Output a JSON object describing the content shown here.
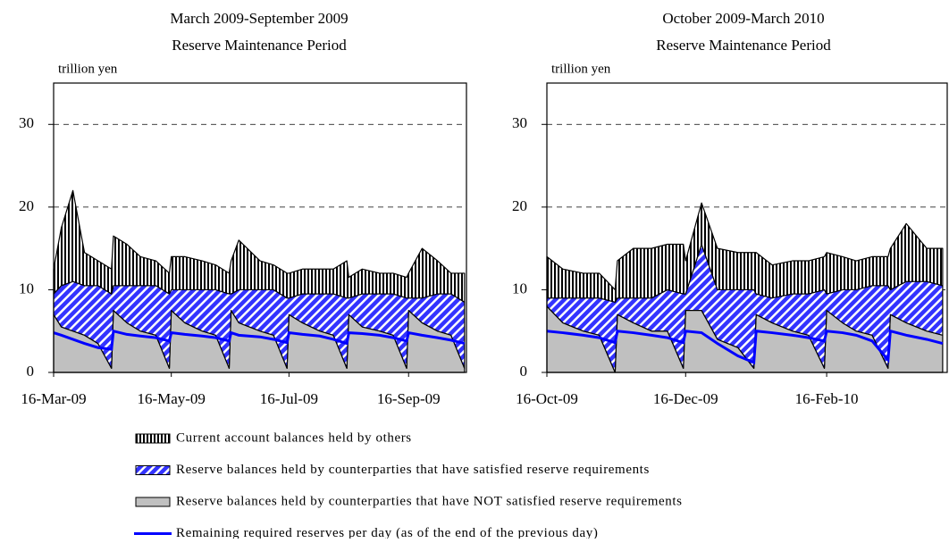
{
  "chart_data": [
    {
      "type": "area",
      "title": "March 2009-September 2009",
      "subtitle": "Reserve Maintenance Period",
      "ylabel": "trillion yen",
      "x": [
        "16-Mar-09",
        "20-Mar-09",
        "26-Mar-09",
        "01-Apr-09",
        "08-Apr-09",
        "15-Apr-09",
        "16-Apr-09",
        "23-Apr-09",
        "30-Apr-09",
        "08-May-09",
        "15-May-09",
        "16-May-09",
        "23-May-09",
        "01-Jun-09",
        "08-Jun-09",
        "15-Jun-09",
        "16-Jun-09",
        "20-Jun-09",
        "01-Jul-09",
        "08-Jul-09",
        "15-Jul-09",
        "16-Jul-09",
        "23-Jul-09",
        "01-Aug-09",
        "08-Aug-09",
        "15-Aug-09",
        "16-Aug-09",
        "23-Aug-09",
        "01-Sep-09",
        "08-Sep-09",
        "15-Sep-09",
        "16-Sep-09",
        "23-Sep-09",
        "01-Oct-09",
        "08-Oct-09",
        "15-Oct-09"
      ],
      "xlim": [
        "16-Mar-09",
        "16-Oct-09"
      ],
      "xticks": [
        "16-Mar-09",
        "16-May-09",
        "16-Jul-09",
        "16-Sep-09"
      ],
      "ylim": [
        0,
        35
      ],
      "yticks": [
        0,
        10,
        20,
        30
      ],
      "grid": true,
      "series": [
        {
          "name": "Reserve balances held by counterparties that have NOT satisfied reserve requirements",
          "kind": "area",
          "hatch": "solid",
          "color": "#c0c0c0",
          "values": [
            7,
            5.5,
            5,
            4.5,
            3.5,
            0.5,
            7.5,
            6,
            5,
            4.5,
            0.5,
            7.5,
            6,
            5,
            4.5,
            0.5,
            7.5,
            6,
            5,
            4.5,
            0.5,
            7,
            6,
            5,
            4.5,
            0.5,
            7,
            5.5,
            5,
            4.5,
            0.5,
            7.5,
            6,
            5,
            4.5,
            0.5
          ]
        },
        {
          "name": "Reserve balances held by counterparties that have satisfied reserve requirements",
          "kind": "area",
          "hatch": "diagonal",
          "color": "#3333ff",
          "values": [
            2.5,
            5,
            6,
            6,
            7,
            9,
            3,
            4.5,
            5.5,
            6,
            9,
            2.5,
            4,
            5,
            5.5,
            9,
            2,
            4,
            5,
            5.5,
            8.5,
            2,
            3.5,
            4.5,
            5,
            8.5,
            2,
            4,
            4.5,
            5,
            8.5,
            1.5,
            3,
            4.5,
            5,
            8
          ]
        },
        {
          "name": "Current account balances held by others",
          "kind": "area",
          "hatch": "vertical",
          "color": "#000000",
          "values": [
            3,
            7,
            11,
            4,
            3,
            3,
            6,
            5,
            3.5,
            3,
            2.5,
            4,
            4,
            3.5,
            3,
            2.5,
            4,
            6,
            3.5,
            3,
            3,
            3,
            3,
            3,
            3,
            4.5,
            2.5,
            3,
            2.5,
            2.5,
            2.5,
            3,
            6,
            4,
            2.5,
            3.5
          ]
        },
        {
          "name": "Remaining required reserves per day (as of the end of the previous day)",
          "kind": "line",
          "color": "#0000ff",
          "values": [
            4.8,
            4.5,
            4,
            3.5,
            3,
            2.8,
            5,
            4.6,
            4.4,
            4.2,
            3.8,
            4.8,
            4.6,
            4.4,
            4.2,
            3.8,
            4.8,
            4.5,
            4.3,
            4,
            3.6,
            4.8,
            4.6,
            4.4,
            4,
            3.5,
            4.8,
            4.7,
            4.5,
            4.2,
            3.8,
            4.8,
            4.5,
            4.2,
            3.9,
            3.5
          ]
        }
      ]
    },
    {
      "type": "area",
      "title": "October 2009-March 2010",
      "subtitle": "Reserve Maintenance Period",
      "ylabel": "trillion yen",
      "x": [
        "16-Oct-09",
        "23-Oct-09",
        "01-Nov-09",
        "08-Nov-09",
        "15-Nov-09",
        "16-Nov-09",
        "23-Nov-09",
        "01-Dec-09",
        "08-Dec-09",
        "15-Dec-09",
        "16-Dec-09",
        "23-Dec-09",
        "30-Dec-09",
        "08-Jan-10",
        "15-Jan-10",
        "16-Jan-10",
        "23-Jan-10",
        "01-Feb-10",
        "08-Feb-10",
        "15-Feb-10",
        "16-Feb-10",
        "23-Feb-10",
        "01-Mar-10",
        "08-Mar-10",
        "15-Mar-10",
        "16-Mar-10",
        "23-Mar-10",
        "01-Apr-10",
        "08-Apr-10"
      ],
      "xlim": [
        "16-Oct-09",
        "10-Apr-10"
      ],
      "xticks": [
        "16-Oct-09",
        "16-Dec-09",
        "16-Feb-10"
      ],
      "ylim": [
        0,
        35
      ],
      "yticks": [
        0,
        10,
        20,
        30
      ],
      "grid": true,
      "series": [
        {
          "name": "Reserve balances held by counterparties that have NOT satisfied reserve requirements",
          "kind": "area",
          "hatch": "solid",
          "color": "#c0c0c0",
          "values": [
            8,
            6,
            5,
            4.5,
            0,
            7,
            6,
            5,
            5,
            0.5,
            7.5,
            7.5,
            4,
            3,
            0.5,
            7,
            6,
            5,
            4.5,
            0.5,
            7.5,
            6,
            5,
            4.5,
            0.5,
            7,
            6,
            5,
            4.5
          ]
        },
        {
          "name": "Reserve balances held by counterparties that have satisfied reserve requirements",
          "kind": "area",
          "hatch": "diagonal",
          "color": "#3333ff",
          "values": [
            1,
            3,
            4,
            4.5,
            8.5,
            2,
            3,
            4,
            5,
            9,
            2,
            8,
            6,
            7,
            9.5,
            2.5,
            3,
            4.5,
            5,
            9.5,
            2,
            4,
            5,
            6,
            10,
            3,
            5,
            6,
            6
          ]
        },
        {
          "name": "Current account balances held by others",
          "kind": "area",
          "hatch": "vertical",
          "color": "#000000",
          "values": [
            5,
            3.5,
            3,
            3,
            1.5,
            4.5,
            6,
            6,
            5.5,
            6,
            4,
            5,
            5,
            4.5,
            4.5,
            5,
            4,
            4,
            4,
            4,
            5,
            4,
            3.5,
            3.5,
            3.5,
            5,
            7,
            4,
            4.5
          ]
        },
        {
          "name": "Remaining required reserves per day (as of the end of the previous day)",
          "kind": "line",
          "color": "#0000ff",
          "values": [
            5,
            4.8,
            4.5,
            4.2,
            3.6,
            5,
            4.8,
            4.5,
            4.2,
            3.6,
            5,
            4.8,
            3.5,
            2,
            1.2,
            5,
            4.8,
            4.5,
            4.2,
            3.8,
            5,
            4.8,
            4.5,
            3.8,
            1.5,
            5,
            4.5,
            4,
            3.5
          ]
        }
      ]
    }
  ]
}
